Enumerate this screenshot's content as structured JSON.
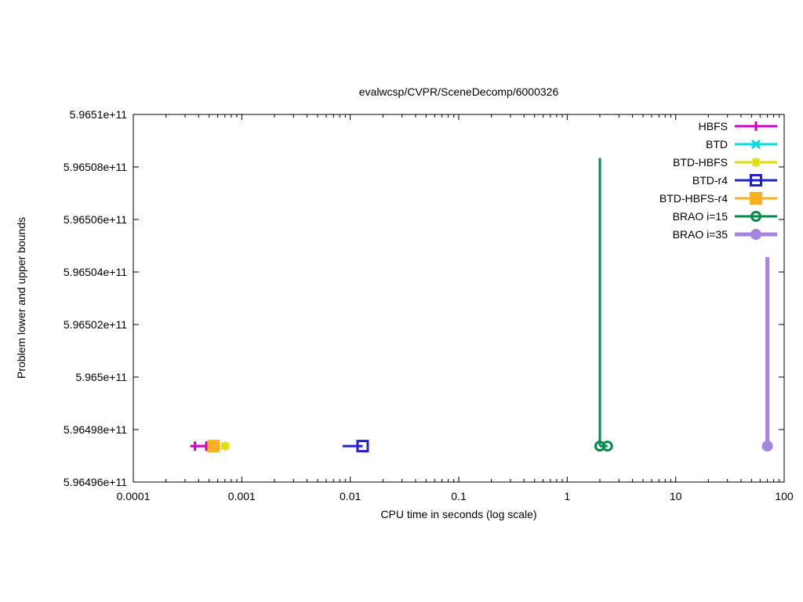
{
  "chart_data": {
    "type": "scatter",
    "title": "evalwcsp/CVPR/SceneDecomp/6000326",
    "xlabel": "CPU time in seconds (log scale)",
    "ylabel": "Problem lower and upper bounds",
    "x_scale": "log",
    "grid": false,
    "xlim": [
      0.0001,
      100
    ],
    "ylim": [
      596496000000,
      596510000000
    ],
    "xticks": [
      {
        "v": 0.0001,
        "label": "0.0001"
      },
      {
        "v": 0.001,
        "label": "0.001"
      },
      {
        "v": 0.01,
        "label": "0.01"
      },
      {
        "v": 0.1,
        "label": "0.1"
      },
      {
        "v": 1,
        "label": "1"
      },
      {
        "v": 10,
        "label": "10"
      },
      {
        "v": 100,
        "label": "100"
      }
    ],
    "yticks": [
      {
        "v": 596496000000,
        "label": "5.96496e+11"
      },
      {
        "v": 596498000000,
        "label": "5.96498e+11"
      },
      {
        "v": 596500000000,
        "label": "5.965e+11"
      },
      {
        "v": 596502000000,
        "label": "5.96502e+11"
      },
      {
        "v": 596504000000,
        "label": "5.96504e+11"
      },
      {
        "v": 596506000000,
        "label": "5.96506e+11"
      },
      {
        "v": 596508000000,
        "label": "5.96508e+11"
      },
      {
        "v": 596510000000,
        "label": "5.9651e+11"
      }
    ],
    "legend_position": "top-right-inside",
    "series": [
      {
        "name": "HBFS",
        "color": "#cc00cc",
        "marker": "plus",
        "line_width": 3,
        "segments": [
          {
            "x1": 0.00037,
            "x2": 0.00047,
            "y": 596497370000
          }
        ],
        "points": [
          {
            "x": 0.00037,
            "y": 596497370000
          },
          {
            "x": 0.00047,
            "y": 596497370000
          }
        ]
      },
      {
        "name": "BTD",
        "color": "#00dddd",
        "marker": "cross",
        "line_width": 3,
        "segments": [],
        "points": [
          {
            "x": 0.00055,
            "y": 596497370000
          }
        ]
      },
      {
        "name": "BTD-HBFS",
        "color": "#dddd00",
        "marker": "asterisk",
        "line_width": 3,
        "segments": [],
        "points": [
          {
            "x": 0.0007,
            "y": 596497370000
          }
        ]
      },
      {
        "name": "BTD-r4",
        "color": "#2222cc",
        "marker": "square-open",
        "line_width": 3,
        "segments": [
          {
            "x1": 0.0085,
            "x2": 0.013,
            "y": 596497370000
          }
        ],
        "points": [
          {
            "x": 0.013,
            "y": 596497370000
          }
        ]
      },
      {
        "name": "BTD-HBFS-r4",
        "color": "#ffb020",
        "marker": "square-filled",
        "line_width": 3,
        "segments": [],
        "points": [
          {
            "x": 0.00055,
            "y": 596497370000
          }
        ]
      },
      {
        "name": "BRAO i=15",
        "color": "#008c48",
        "marker": "circle-open",
        "line_width": 3,
        "segments": [
          {
            "x1": 2.0,
            "x2": 2.35,
            "y": 596497370000
          }
        ],
        "vlines": [
          {
            "x": 2.0,
            "y1": 596497370000,
            "y2": 596508340000
          }
        ],
        "points": [
          {
            "x": 2.0,
            "y": 596497370000
          },
          {
            "x": 2.35,
            "y": 596497370000
          }
        ]
      },
      {
        "name": "BRAO i=35",
        "color": "#a585e0",
        "marker": "circle-filled",
        "line_width": 5,
        "segments": [],
        "vlines": [
          {
            "x": 70,
            "y1": 596497370000,
            "y2": 596504570000
          }
        ],
        "points": [
          {
            "x": 70,
            "y": 596497370000
          }
        ]
      }
    ]
  }
}
